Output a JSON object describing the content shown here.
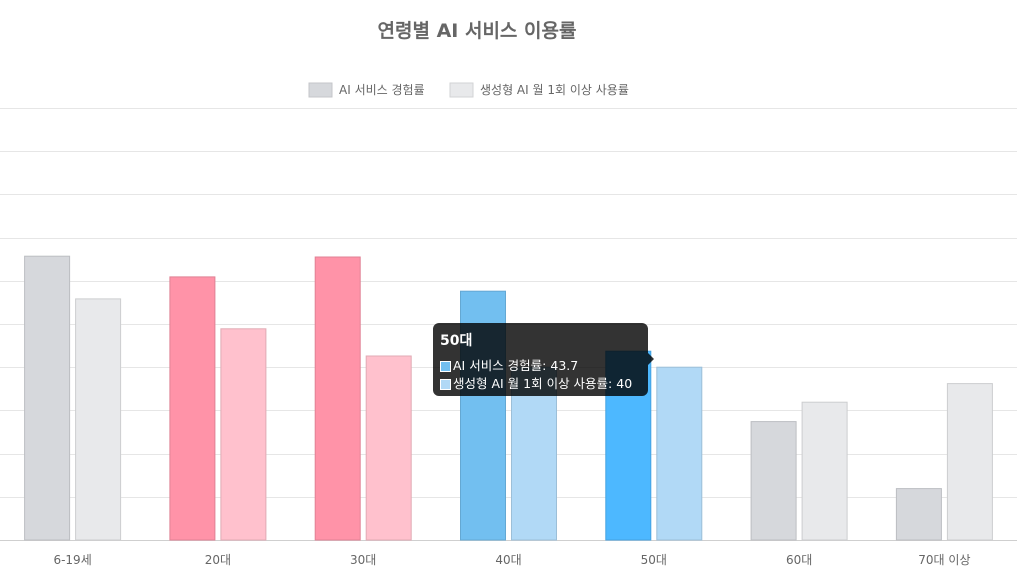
{
  "chart_data": {
    "type": "bar",
    "title": "연령별 AI 서비스 이용률",
    "categories": [
      "6-19세",
      "20대",
      "30대",
      "40대",
      "50대",
      "60대",
      "70대 이상"
    ],
    "series": [
      {
        "name": "AI 서비스 경험률",
        "values": [
          65.7,
          60.9,
          65.5,
          57.6,
          43.7,
          27.4,
          11.9
        ]
      },
      {
        "name": "생성형 AI 월 1회 이상 사용률",
        "values": [
          55.8,
          48.9,
          42.6,
          40.0,
          40.0,
          31.9,
          36.2
        ]
      }
    ],
    "ylim": [
      0,
      100
    ],
    "grid": true,
    "legend_position": "top",
    "colors": {
      "series0_default": "#d6d8dc",
      "series1_default": "#e8e9eb",
      "series0_red": "#ff93a8",
      "series1_red": "#ffc1cd",
      "series0_blue": "#72bff0",
      "series1_blue": "#b1d9f6",
      "series0_active": "#4db8ff",
      "series1_active": "#b1d9f6"
    },
    "bar_palette": [
      "default",
      "red",
      "red",
      "blue",
      "active",
      "default",
      "default"
    ]
  },
  "tooltip": {
    "title": "50대",
    "rows": [
      {
        "label": "AI 서비스 경험률: 43.7",
        "swatch": "#72bff0"
      },
      {
        "label": "생성형 AI 월 1회 이상 사용률: 40",
        "swatch": "#b1d9f6"
      }
    ]
  }
}
